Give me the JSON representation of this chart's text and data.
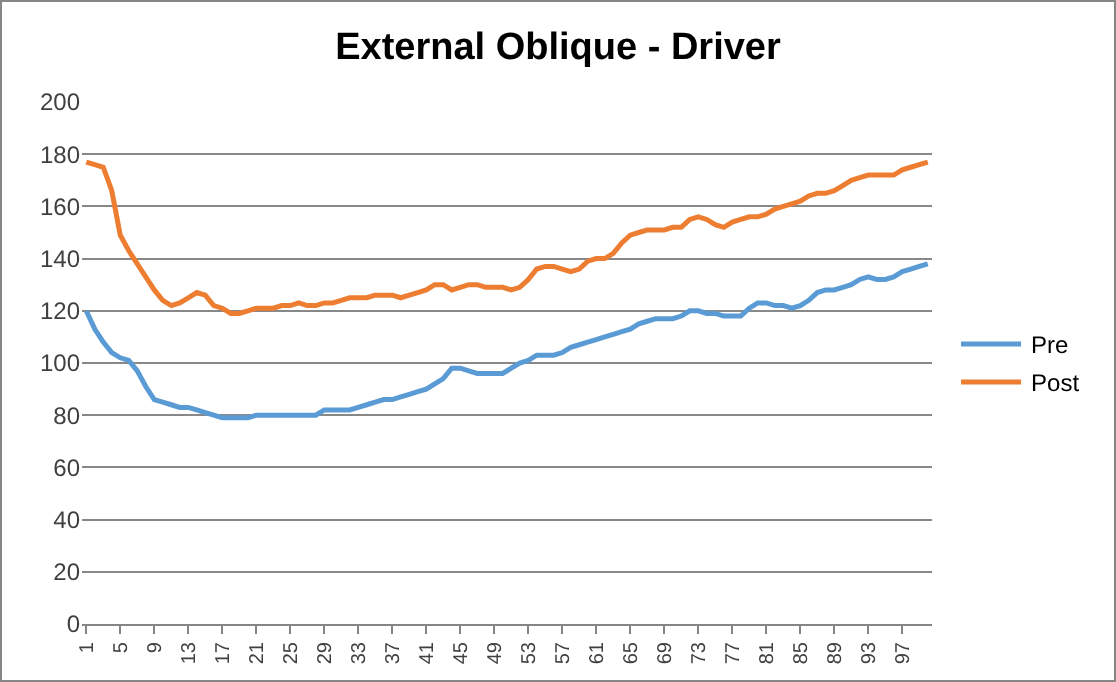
{
  "chart_data": {
    "type": "line",
    "title": "External Oblique - Driver",
    "categories": [
      "1",
      null,
      null,
      null,
      "5",
      null,
      null,
      null,
      "9",
      null,
      null,
      null,
      "13",
      null,
      null,
      null,
      "17",
      null,
      null,
      null,
      "21",
      null,
      null,
      null,
      "25",
      null,
      null,
      null,
      "29",
      null,
      null,
      null,
      "33",
      null,
      null,
      null,
      "37",
      null,
      null,
      null,
      "41",
      null,
      null,
      null,
      "45",
      null,
      null,
      null,
      "49",
      null,
      null,
      null,
      "53",
      null,
      null,
      null,
      "57",
      null,
      null,
      null,
      "61",
      null,
      null,
      null,
      "65",
      null,
      null,
      null,
      "69",
      null,
      null,
      null,
      "73",
      null,
      null,
      null,
      "77",
      null,
      null,
      null,
      "81",
      null,
      null,
      null,
      "85",
      null,
      null,
      null,
      "89",
      null,
      null,
      null,
      "93",
      null,
      null,
      null,
      "97",
      null,
      null,
      null
    ],
    "series": [
      {
        "name": "Pre",
        "color": "#5b9bd5",
        "values": [
          120,
          113,
          108,
          104,
          102,
          101,
          97,
          91,
          86,
          85,
          84,
          83,
          83,
          82,
          81,
          80,
          79,
          79,
          79,
          79,
          80,
          80,
          80,
          80,
          80,
          80,
          80,
          80,
          82,
          82,
          82,
          82,
          83,
          84,
          85,
          86,
          86,
          87,
          88,
          89,
          90,
          92,
          94,
          98,
          98,
          97,
          96,
          96,
          96,
          96,
          98,
          100,
          101,
          103,
          103,
          103,
          104,
          106,
          107,
          108,
          109,
          110,
          111,
          112,
          113,
          115,
          116,
          117,
          117,
          117,
          118,
          120,
          120,
          119,
          119,
          118,
          118,
          118,
          121,
          123,
          123,
          122,
          122,
          121,
          122,
          124,
          127,
          128,
          128,
          129,
          130,
          132,
          133,
          132,
          132,
          133,
          135,
          136,
          137,
          138
        ]
      },
      {
        "name": "Post",
        "color": "#ed7d31",
        "values": [
          177,
          176,
          175,
          166,
          149,
          143,
          138,
          133,
          128,
          124,
          122,
          123,
          125,
          127,
          126,
          122,
          121,
          119,
          119,
          120,
          121,
          121,
          121,
          122,
          122,
          123,
          122,
          122,
          123,
          123,
          124,
          125,
          125,
          125,
          126,
          126,
          126,
          125,
          126,
          127,
          128,
          130,
          130,
          128,
          129,
          130,
          130,
          129,
          129,
          129,
          128,
          129,
          132,
          136,
          137,
          137,
          136,
          135,
          136,
          139,
          140,
          140,
          142,
          146,
          149,
          150,
          151,
          151,
          151,
          152,
          152,
          155,
          156,
          155,
          153,
          152,
          154,
          155,
          156,
          156,
          157,
          159,
          160,
          161,
          162,
          164,
          165,
          165,
          166,
          168,
          170,
          171,
          172,
          172,
          172,
          172,
          174,
          175,
          176,
          177
        ]
      }
    ],
    "ylim": [
      0,
      200
    ],
    "yticks": [
      0,
      20,
      40,
      60,
      80,
      100,
      120,
      140,
      160,
      180,
      200
    ],
    "grid": "y",
    "legend": "right",
    "marker": "none",
    "line_style": "solid"
  }
}
